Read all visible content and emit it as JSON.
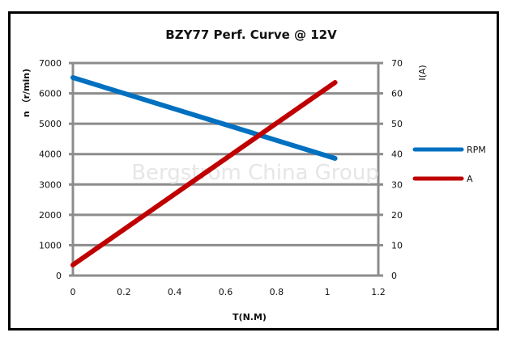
{
  "chart_data": {
    "type": "line",
    "title": "BZY77 Perf.  Curve @ 12V",
    "xlabel": "T(N.M)",
    "ylabel": "n （r/min)",
    "y2label": "I(A)",
    "xlim": [
      0,
      1.2
    ],
    "ylim": [
      0,
      7000
    ],
    "y2lim": [
      0,
      70
    ],
    "x_ticks": [
      "0",
      "0.2",
      "0.4",
      "0.6",
      "0.8",
      "1",
      "1.2"
    ],
    "y_ticks": [
      "0",
      "1000",
      "2000",
      "3000",
      "4000",
      "5000",
      "6000",
      "7000"
    ],
    "y2_ticks": [
      "0",
      "10",
      "20",
      "30",
      "40",
      "50",
      "60",
      "70"
    ],
    "grid": true,
    "legend_position": "right",
    "series": [
      {
        "name": "RPM",
        "axis": "left",
        "color": "#0070C0",
        "x": [
          0,
          1.03
        ],
        "values": [
          6520,
          3860
        ]
      },
      {
        "name": "A",
        "axis": "right",
        "color": "#C00000",
        "x": [
          0,
          1.03
        ],
        "values": [
          3.5,
          63.6
        ]
      }
    ],
    "annotations": [
      "Bergstrom China Group"
    ]
  },
  "legend": {
    "items": [
      {
        "label": "RPM"
      },
      {
        "label": "A"
      }
    ]
  },
  "watermark": "Bergstrom China Group"
}
